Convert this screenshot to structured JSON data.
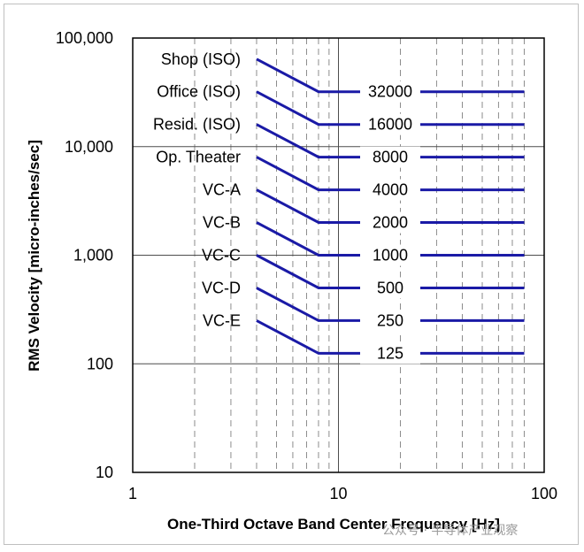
{
  "chart_data": {
    "type": "line",
    "title": "",
    "xlabel": "One-Third Octave Band Center Frequency [Hz]",
    "ylabel": "RMS Velocity [micro-inches/sec]",
    "xscale": "log",
    "yscale": "log",
    "xlim": [
      1,
      100
    ],
    "ylim": [
      10,
      100000
    ],
    "x_ticks": [
      {
        "value": 1,
        "label": "1"
      },
      {
        "value": 10,
        "label": "10"
      },
      {
        "value": 100,
        "label": "100"
      }
    ],
    "y_ticks": [
      {
        "value": 10,
        "label": "10"
      },
      {
        "value": 100,
        "label": "100"
      },
      {
        "value": 1000,
        "label": "1,000"
      },
      {
        "value": 10000,
        "label": "10,000"
      },
      {
        "value": 100000,
        "label": "100,000"
      }
    ],
    "minor_gridlines": "dashed vertical lines at 2–9, 20–80 Hz",
    "series": [
      {
        "name": "Shop (ISO)",
        "value_label": "32000",
        "x": [
          4,
          8,
          80
        ],
        "y": [
          64000,
          32000,
          32000
        ]
      },
      {
        "name": "Office (ISO)",
        "value_label": "16000",
        "x": [
          4,
          8,
          80
        ],
        "y": [
          32000,
          16000,
          16000
        ]
      },
      {
        "name": "Resid. (ISO)",
        "value_label": "8000",
        "x": [
          4,
          8,
          80
        ],
        "y": [
          16000,
          8000,
          8000
        ]
      },
      {
        "name": "Op. Theater",
        "value_label": "4000",
        "x": [
          4,
          8,
          80
        ],
        "y": [
          8000,
          4000,
          4000
        ]
      },
      {
        "name": "VC-A",
        "value_label": "2000",
        "x": [
          4,
          8,
          80
        ],
        "y": [
          4000,
          2000,
          2000
        ]
      },
      {
        "name": "VC-B",
        "value_label": "1000",
        "x": [
          4,
          8,
          80
        ],
        "y": [
          2000,
          1000,
          1000
        ]
      },
      {
        "name": "VC-C",
        "value_label": "500",
        "x": [
          4,
          8,
          80
        ],
        "y": [
          1000,
          500,
          500
        ]
      },
      {
        "name": "VC-D",
        "value_label": "250",
        "x": [
          4,
          8,
          80
        ],
        "y": [
          500,
          250,
          250
        ]
      },
      {
        "name": "VC-E",
        "value_label": "125",
        "x": [
          4,
          8,
          80
        ],
        "y": [
          250,
          125,
          125
        ]
      }
    ],
    "line_color": "#1a1aa6",
    "grid": true
  },
  "watermark_text": "公众号 · 半导体产业观察"
}
